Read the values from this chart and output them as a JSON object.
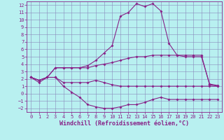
{
  "xlabel": "Windchill (Refroidissement éolien,°C)",
  "xlim": [
    -0.5,
    23.5
  ],
  "ylim": [
    -2.5,
    12.5
  ],
  "xticks": [
    0,
    1,
    2,
    3,
    4,
    5,
    6,
    7,
    8,
    9,
    10,
    11,
    12,
    13,
    14,
    15,
    16,
    17,
    18,
    19,
    20,
    21,
    22,
    23
  ],
  "yticks": [
    -2,
    -1,
    0,
    1,
    2,
    3,
    4,
    5,
    6,
    7,
    8,
    9,
    10,
    11,
    12
  ],
  "bg_color": "#b8f0f0",
  "grid_color": "#8888bb",
  "line_color": "#882288",
  "line1_x": [
    0,
    1,
    2,
    3,
    4,
    5,
    6,
    7,
    8,
    9,
    10,
    11,
    12,
    13,
    14,
    15,
    16,
    17,
    18,
    19,
    20,
    21,
    22,
    23
  ],
  "line1_y": [
    2.2,
    1.8,
    2.2,
    3.5,
    3.5,
    3.5,
    3.5,
    3.5,
    3.8,
    4.0,
    4.2,
    4.5,
    4.8,
    5.0,
    5.0,
    5.2,
    5.2,
    5.2,
    5.2,
    5.2,
    5.2,
    5.2,
    1.2,
    1.0
  ],
  "line2_x": [
    0,
    1,
    2,
    3,
    4,
    5,
    6,
    7,
    8,
    9,
    10,
    11,
    12,
    13,
    14,
    15,
    16,
    17,
    18,
    19,
    20,
    21,
    22,
    23
  ],
  "line2_y": [
    2.2,
    1.8,
    2.2,
    3.5,
    3.5,
    3.5,
    3.5,
    3.8,
    4.5,
    5.5,
    6.5,
    10.5,
    11.0,
    12.2,
    11.8,
    12.2,
    11.2,
    6.8,
    5.2,
    5.0,
    5.0,
    5.0,
    1.3,
    1.1
  ],
  "line3_x": [
    0,
    1,
    2,
    3,
    4,
    5,
    6,
    7,
    8,
    9,
    10,
    11,
    12,
    13,
    14,
    15,
    16,
    17,
    18,
    19,
    20,
    21,
    22,
    23
  ],
  "line3_y": [
    2.2,
    1.8,
    2.2,
    2.2,
    1.5,
    1.5,
    1.5,
    1.5,
    1.8,
    1.5,
    1.2,
    1.0,
    1.0,
    1.0,
    1.0,
    1.0,
    1.0,
    1.0,
    1.0,
    1.0,
    1.0,
    1.0,
    1.0,
    1.0
  ],
  "line4_x": [
    0,
    1,
    2,
    3,
    4,
    5,
    6,
    7,
    8,
    9,
    10,
    11,
    12,
    13,
    14,
    15,
    16,
    17,
    18,
    19,
    20,
    21,
    22,
    23
  ],
  "line4_y": [
    2.2,
    1.5,
    2.2,
    2.2,
    1.0,
    0.2,
    -0.5,
    -1.5,
    -1.8,
    -2.0,
    -2.0,
    -1.8,
    -1.5,
    -1.5,
    -1.2,
    -0.8,
    -0.5,
    -0.8,
    -0.8,
    -0.8,
    -0.8,
    -0.8,
    -0.8,
    -0.8
  ],
  "fontsize_label": 6,
  "fontsize_tick": 5,
  "marker": "D",
  "markersize": 2.0,
  "linewidth": 0.8
}
